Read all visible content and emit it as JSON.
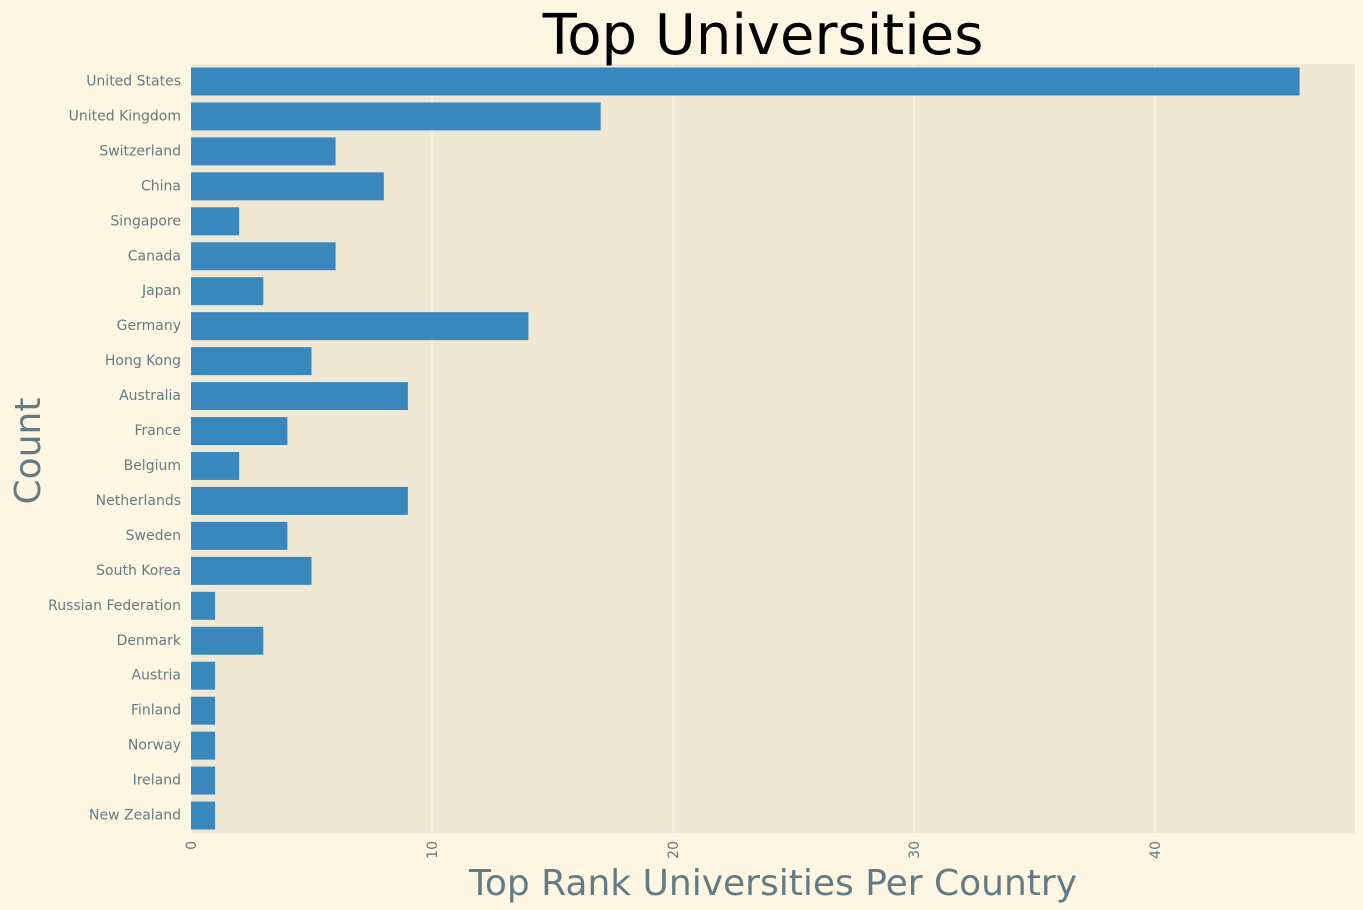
{
  "chart_data": {
    "type": "bar",
    "orientation": "horizontal",
    "title": "Top Universities",
    "xlabel": "Top Rank Universities Per Country",
    "ylabel": "Count",
    "categories": [
      "United States",
      "United Kingdom",
      "Switzerland",
      "China",
      "Singapore",
      "Canada",
      "Japan",
      "Germany",
      "Hong Kong",
      "Australia",
      "France",
      "Belgium",
      "Netherlands",
      "Sweden",
      "South Korea",
      "Russian Federation",
      "Denmark",
      "Austria",
      "Finland",
      "Norway",
      "Ireland",
      "New Zealand"
    ],
    "values": [
      46,
      17,
      6,
      8,
      2,
      6,
      3,
      14,
      5,
      9,
      4,
      2,
      9,
      4,
      5,
      1,
      3,
      1,
      1,
      1,
      1,
      1
    ],
    "xlim": [
      0,
      48.3
    ],
    "xticks": [
      0,
      10,
      20,
      30,
      40
    ],
    "grid": true,
    "colors": {
      "bar": "#3a87bd",
      "plot_background": "#eee8d5",
      "figure_background": "#fdf6e3",
      "grid": "#fdf6e3",
      "text": "#657b83",
      "title": "#000000"
    }
  }
}
